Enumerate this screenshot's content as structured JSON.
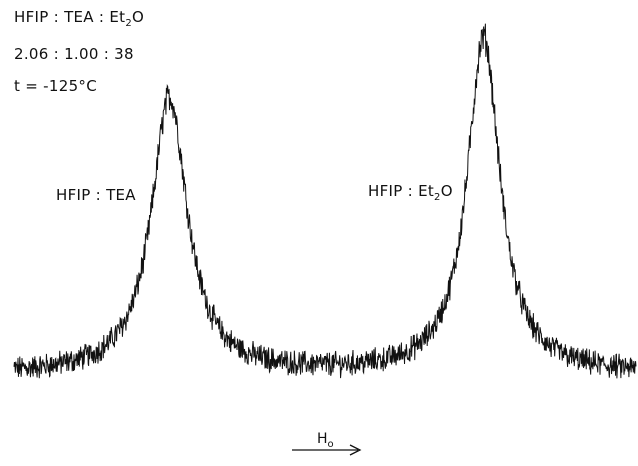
{
  "chart_data": {
    "type": "line",
    "header_lines": [
      {
        "main": "HFIP : TEA : Et",
        "sub": "2",
        "tail": "O"
      },
      {
        "main": "2.06 : 1.00 : 38",
        "sub": "",
        "tail": ""
      },
      {
        "main": "t = -125°C",
        "sub": "",
        "tail": ""
      }
    ],
    "x_axis": {
      "label_main": "H",
      "label_sub": "o",
      "arrow": "right"
    },
    "x": [
      0.0,
      0.1,
      0.2,
      0.3,
      0.4,
      0.5,
      0.6,
      0.7,
      0.8,
      0.9,
      1.0
    ],
    "peaks": [
      {
        "label": "HFIP : TEA",
        "center": 0.25,
        "height": 0.84,
        "width": 0.035
      },
      {
        "label": "HFIP : Et2O",
        "center": 0.755,
        "height": 1.0,
        "width": 0.032
      }
    ],
    "baseline": 0.1,
    "trace_color": "#111111"
  }
}
